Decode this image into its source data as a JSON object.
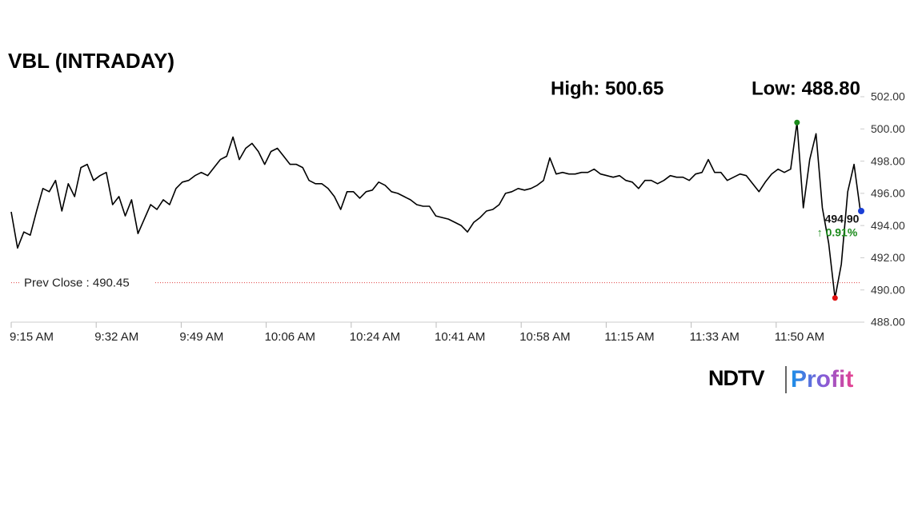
{
  "chart_data": {
    "type": "line",
    "title": "VBL (INTRADAY)",
    "high_text": "High: 500.65",
    "low_text": "Low: 488.80",
    "series": [
      {
        "name": "VBL",
        "color": "#000000",
        "values": [
          494.85,
          492.6,
          493.6,
          493.4,
          494.9,
          496.3,
          496.1,
          496.8,
          494.9,
          496.6,
          495.8,
          497.6,
          497.8,
          496.8,
          497.1,
          497.3,
          495.3,
          495.8,
          494.6,
          495.6,
          493.5,
          494.4,
          495.3,
          495.0,
          495.6,
          495.3,
          496.3,
          496.7,
          496.8,
          497.1,
          497.3,
          497.1,
          497.6,
          498.1,
          498.3,
          499.5,
          498.1,
          498.8,
          499.1,
          498.6,
          497.8,
          498.6,
          498.8,
          498.3,
          497.8,
          497.8,
          497.6,
          496.8,
          496.6,
          496.6,
          496.3,
          495.8,
          495.0,
          496.1,
          496.1,
          495.7,
          496.1,
          496.2,
          496.7,
          496.5,
          496.1,
          496.0,
          495.8,
          495.6,
          495.3,
          495.2,
          495.2,
          494.6,
          494.5,
          494.4,
          494.2,
          494.0,
          493.6,
          494.2,
          494.5,
          494.9,
          495.0,
          495.3,
          496.0,
          496.1,
          496.3,
          496.2,
          496.3,
          496.5,
          496.8,
          498.2,
          497.2,
          497.3,
          497.2,
          497.2,
          497.3,
          497.3,
          497.5,
          497.2,
          497.1,
          497.0,
          497.1,
          496.8,
          496.7,
          496.3,
          496.8,
          496.8,
          496.6,
          496.8,
          497.1,
          497.0,
          497.0,
          496.8,
          497.2,
          497.3,
          498.1,
          497.3,
          497.3,
          496.8,
          497.0,
          497.2,
          497.1,
          496.6,
          496.1,
          496.7,
          497.2,
          497.5,
          497.3,
          497.5,
          500.4,
          495.1,
          498.1,
          499.7,
          495.1,
          492.9,
          489.5,
          491.6,
          496.1,
          497.8,
          494.9
        ]
      }
    ],
    "x_tick_labels": [
      "9:15 AM",
      "9:32 AM",
      "9:49 AM",
      "10:06 AM",
      "10:24 AM",
      "10:41 AM",
      "10:58 AM",
      "11:15 AM",
      "11:33 AM",
      "11:50 AM"
    ],
    "ylim": [
      488,
      502
    ],
    "yticks": [
      {
        "value": 488,
        "label": "488.00"
      },
      {
        "value": 490,
        "label": "490.00"
      },
      {
        "value": 492,
        "label": "492.00"
      },
      {
        "value": 494,
        "label": "494.00"
      },
      {
        "value": 496,
        "label": "496.00"
      },
      {
        "value": 498,
        "label": "498.00"
      },
      {
        "value": 500,
        "label": "500.00"
      },
      {
        "value": 502,
        "label": "502.00"
      }
    ],
    "prev_close": {
      "value": 490.45,
      "label": "Prev Close : 490.45"
    },
    "last_price": {
      "value": 494.9,
      "label": "494.90"
    },
    "change_text": "↑ 0.91%",
    "brand": {
      "name": "NDTV",
      "product": "Profit"
    }
  }
}
